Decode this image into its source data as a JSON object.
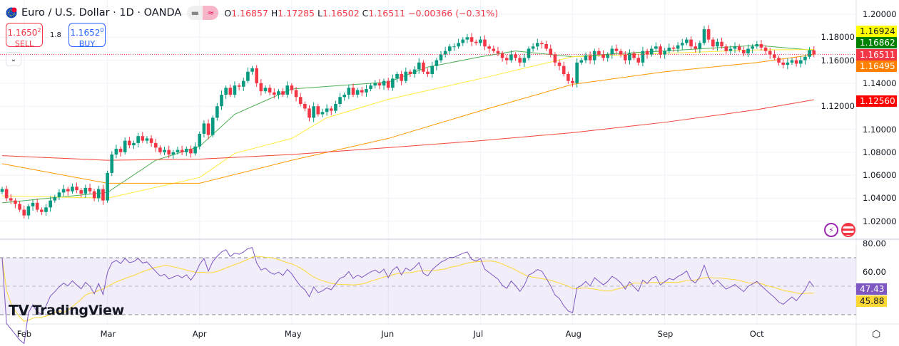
{
  "header": {
    "symbol": "Euro / U.S. Dollar · 1D · OANDA",
    "open_label": "O",
    "open": "1.16857",
    "high_label": "H",
    "high": "1.17285",
    "low_label": "L",
    "low": "1.16502",
    "close_label": "C",
    "close": "1.16511",
    "change": "−0.00366 (−0.31%)",
    "pill_left": "▬",
    "pill_right": "≈"
  },
  "trade": {
    "sell_price": "1.1650",
    "sell_sup": "2",
    "sell_label": "SELL",
    "spread": "1.8",
    "buy_price": "1.1652",
    "buy_sup": "0",
    "buy_label": "BUY",
    "collapse_icon": "chevron-down-icon"
  },
  "branding": {
    "logo_text": "TradingView"
  },
  "icons": {
    "events": "lightning-icon",
    "economic": "us-flag-icon",
    "settings": "gear-icon"
  },
  "colors": {
    "up": "#089981",
    "down": "#f23645",
    "ma_green": "#4caf50",
    "ma_yellow": "#ffeb3b",
    "ma_orange": "#ff9800",
    "ma_red": "#f44336",
    "rsi": "#7e57c2",
    "rsi_ma": "#fdd835"
  },
  "chart_data": {
    "type": "candlestick",
    "interval": "1D",
    "y_axis": {
      "range": [
        1.01,
        1.205
      ],
      "ticks": [
        "1.20000",
        "1.18000",
        "1.16000",
        "1.14000",
        "1.12000",
        "1.10000",
        "1.08000",
        "1.06000",
        "1.04000",
        "1.02000"
      ]
    },
    "x_axis": {
      "months": [
        {
          "label": "Feb",
          "index": 5
        },
        {
          "label": "Mar",
          "index": 24
        },
        {
          "label": "Apr",
          "index": 45
        },
        {
          "label": "May",
          "index": 66
        },
        {
          "label": "Jun",
          "index": 88
        },
        {
          "label": "Jul",
          "index": 109
        },
        {
          "label": "Aug",
          "index": 130
        },
        {
          "label": "Sep",
          "index": 151
        },
        {
          "label": "Oct",
          "index": 172
        }
      ]
    },
    "first_open": 1.0455,
    "closes": [
      1.048,
      1.04,
      1.038,
      1.035,
      1.03,
      1.025,
      1.033,
      1.036,
      1.03,
      1.028,
      1.032,
      1.038,
      1.041,
      1.045,
      1.048,
      1.046,
      1.05,
      1.047,
      1.044,
      1.049,
      1.046,
      1.04,
      1.048,
      1.038,
      1.062,
      1.078,
      1.083,
      1.08,
      1.09,
      1.086,
      1.088,
      1.094,
      1.09,
      1.092,
      1.088,
      1.084,
      1.08,
      1.082,
      1.078,
      1.08,
      1.082,
      1.08,
      1.083,
      1.079,
      1.085,
      1.096,
      1.105,
      1.095,
      1.11,
      1.12,
      1.13,
      1.136,
      1.13,
      1.138,
      1.137,
      1.142,
      1.15,
      1.153,
      1.14,
      1.133,
      1.136,
      1.132,
      1.13,
      1.133,
      1.13,
      1.138,
      1.134,
      1.128,
      1.122,
      1.118,
      1.11,
      1.12,
      1.113,
      1.115,
      1.118,
      1.116,
      1.122,
      1.128,
      1.13,
      1.136,
      1.13,
      1.134,
      1.132,
      1.135,
      1.138,
      1.14,
      1.138,
      1.142,
      1.136,
      1.144,
      1.148,
      1.142,
      1.15,
      1.148,
      1.152,
      1.158,
      1.15,
      1.148,
      1.155,
      1.16,
      1.165,
      1.168,
      1.172,
      1.172,
      1.175,
      1.178,
      1.18,
      1.176,
      1.175,
      1.178,
      1.172,
      1.17,
      1.168,
      1.166,
      1.162,
      1.16,
      1.165,
      1.162,
      1.158,
      1.162,
      1.17,
      1.172,
      1.175,
      1.174,
      1.17,
      1.165,
      1.158,
      1.155,
      1.148,
      1.142,
      1.14,
      1.158,
      1.16,
      1.164,
      1.16,
      1.168,
      1.165,
      1.162,
      1.165,
      1.17,
      1.168,
      1.165,
      1.16,
      1.166,
      1.162,
      1.158,
      1.168,
      1.165,
      1.17,
      1.172,
      1.165,
      1.168,
      1.171,
      1.17,
      1.173,
      1.175,
      1.178,
      1.172,
      1.17,
      1.175,
      1.187,
      1.178,
      1.172,
      1.176,
      1.172,
      1.168,
      1.17,
      1.172,
      1.169,
      1.166,
      1.17,
      1.172,
      1.174,
      1.171,
      1.168,
      1.165,
      1.162,
      1.158,
      1.156,
      1.158,
      1.16,
      1.157,
      1.16,
      1.163,
      1.16857,
      1.16511
    ],
    "moving_averages": [
      {
        "color": "#4caf50",
        "last": "1.16862",
        "index": [
          0,
          24,
          35,
          45,
          53,
          66,
          88,
          97,
          109,
          117,
          130,
          141,
          151,
          172,
          185
        ],
        "values": [
          1.036,
          1.045,
          1.073,
          1.085,
          1.113,
          1.135,
          1.141,
          1.154,
          1.163,
          1.168,
          1.163,
          1.166,
          1.168,
          1.173,
          1.16862
        ]
      },
      {
        "color": "#ffeb3b",
        "last": "1.16924",
        "index": [
          0,
          24,
          45,
          53,
          66,
          74,
          88,
          109,
          130,
          151,
          172,
          185
        ],
        "values": [
          1.042,
          1.04,
          1.058,
          1.079,
          1.092,
          1.11,
          1.126,
          1.144,
          1.163,
          1.166,
          1.169,
          1.16924
        ]
      },
      {
        "color": "#ff9800",
        "last": "1.16495",
        "index": [
          0,
          24,
          45,
          66,
          88,
          109,
          130,
          151,
          172,
          185
        ],
        "values": [
          1.07,
          1.053,
          1.053,
          1.073,
          1.092,
          1.116,
          1.139,
          1.15,
          1.158,
          1.16495
        ]
      },
      {
        "color": "#f44336",
        "last": "1.12560",
        "index": [
          0,
          24,
          45,
          66,
          88,
          109,
          130,
          151,
          172,
          185
        ],
        "values": [
          1.077,
          1.073,
          1.074,
          1.078,
          1.084,
          1.09,
          1.097,
          1.106,
          1.117,
          1.1256
        ]
      }
    ],
    "last_price": "1.16511",
    "rsi": {
      "range": [
        20,
        90
      ],
      "ticks": [
        "80.00",
        "60.00"
      ],
      "levels": [
        70,
        50,
        30
      ],
      "last": "47.43",
      "ma_last": "45.88"
    }
  }
}
